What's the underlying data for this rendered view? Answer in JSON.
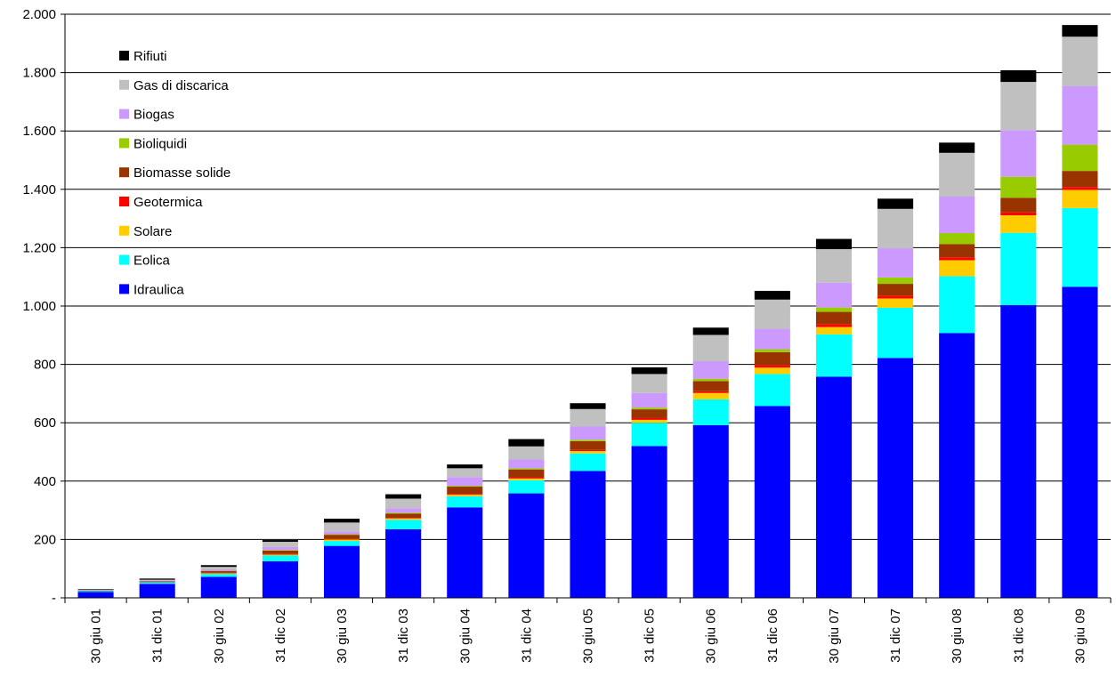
{
  "chart_data": {
    "type": "bar",
    "stacked": true,
    "categories": [
      "30 giu 01",
      "31 dic 01",
      "30 giu 02",
      "31 dic 02",
      "30 giu 03",
      "31 dic 03",
      "30 giu 04",
      "31 dic 04",
      "30 giu 05",
      "31 dic 05",
      "30 giu 06",
      "31 dic 06",
      "30 giu 07",
      "31 dic 07",
      "30 giu 08",
      "31 dic 08",
      "30 giu 09"
    ],
    "ylim": [
      0,
      2000
    ],
    "y_ticks": [
      0,
      200,
      400,
      600,
      800,
      1000,
      1200,
      1400,
      1600,
      1800,
      2000
    ],
    "y_tick_labels": [
      "-",
      "200",
      "400",
      "600",
      "800",
      "1.000",
      "1.200",
      "1.400",
      "1.600",
      "1.800",
      "2.000"
    ],
    "grid": "horizontal",
    "legend_position": "top-left",
    "series": [
      {
        "name": "Idraulica",
        "color": "#0000ff",
        "values": [
          20,
          48,
          72,
          125,
          178,
          235,
          310,
          358,
          435,
          520,
          592,
          657,
          758,
          822,
          907,
          1003,
          1066
        ]
      },
      {
        "name": "Eolica",
        "color": "#00ffff",
        "values": [
          3,
          5,
          10,
          20,
          17,
          32,
          38,
          45,
          60,
          80,
          88,
          110,
          145,
          172,
          195,
          248,
          270
        ]
      },
      {
        "name": "Solare",
        "color": "#ffcc00",
        "values": [
          0,
          0,
          2,
          3,
          5,
          5,
          5,
          6,
          8,
          10,
          22,
          22,
          25,
          32,
          55,
          60,
          62
        ]
      },
      {
        "name": "Geotermica",
        "color": "#ff0000",
        "values": [
          0,
          1,
          2,
          2,
          2,
          2,
          3,
          4,
          4,
          6,
          6,
          8,
          10,
          10,
          10,
          10,
          10
        ]
      },
      {
        "name": "Biomasse solide",
        "color": "#993300",
        "values": [
          2,
          3,
          6,
          12,
          14,
          15,
          25,
          27,
          30,
          30,
          35,
          45,
          42,
          40,
          45,
          50,
          55
        ]
      },
      {
        "name": "Bioliquidi",
        "color": "#99cc00",
        "values": [
          0,
          0,
          1,
          2,
          2,
          3,
          3,
          4,
          5,
          6,
          8,
          10,
          15,
          22,
          38,
          72,
          90
        ]
      },
      {
        "name": "Biogas",
        "color": "#cc99ff",
        "values": [
          1,
          2,
          5,
          10,
          10,
          15,
          30,
          30,
          45,
          50,
          60,
          70,
          85,
          100,
          125,
          160,
          200
        ]
      },
      {
        "name": "Gas di discarica",
        "color": "#c0c0c0",
        "values": [
          2,
          3,
          8,
          18,
          30,
          33,
          30,
          45,
          60,
          65,
          90,
          100,
          115,
          135,
          150,
          165,
          170
        ]
      },
      {
        "name": "Rifiuti",
        "color": "#000000",
        "values": [
          2,
          4,
          6,
          6,
          13,
          15,
          13,
          25,
          20,
          23,
          25,
          30,
          35,
          35,
          35,
          40,
          40
        ]
      }
    ]
  }
}
